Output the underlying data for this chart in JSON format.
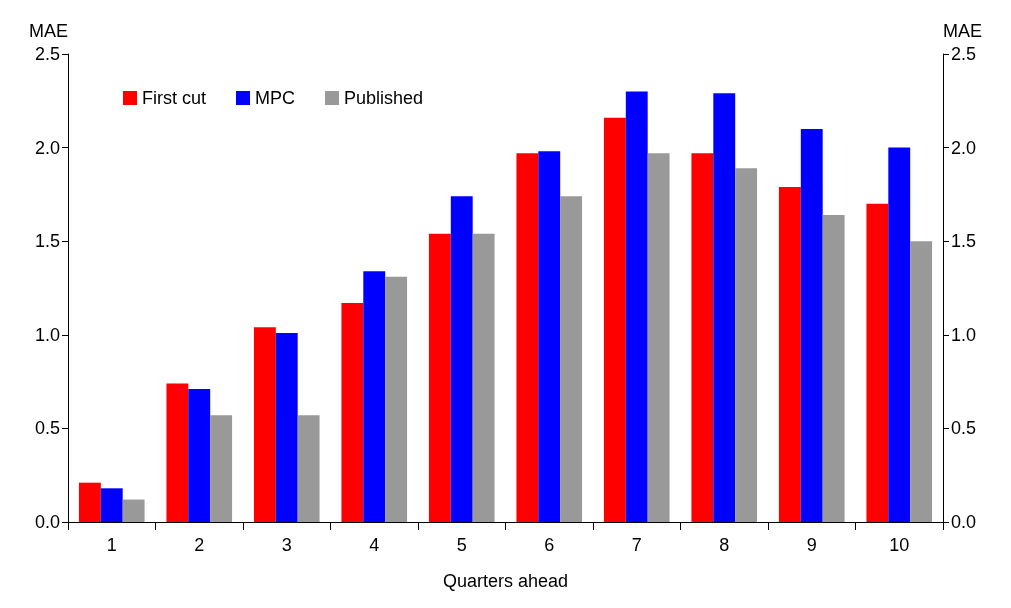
{
  "chart_data": {
    "type": "bar",
    "ylabel": "MAE",
    "y2label": "MAE",
    "xlabel": "Quarters ahead",
    "categories": [
      "1",
      "2",
      "3",
      "4",
      "5",
      "6",
      "7",
      "8",
      "9",
      "10"
    ],
    "series": [
      {
        "name": "First cut",
        "color": "#ff0000",
        "values": [
          0.21,
          0.74,
          1.04,
          1.17,
          1.54,
          1.97,
          2.16,
          1.97,
          1.79,
          1.7
        ]
      },
      {
        "name": "MPC",
        "color": "#0000ff",
        "values": [
          0.18,
          0.71,
          1.01,
          1.34,
          1.74,
          1.98,
          2.3,
          2.29,
          2.1,
          2.0
        ]
      },
      {
        "name": "Published",
        "color": "#999999",
        "values": [
          0.12,
          0.57,
          0.57,
          1.31,
          1.54,
          1.74,
          1.97,
          1.89,
          1.64,
          1.5
        ]
      }
    ],
    "ylim": [
      0,
      2.5
    ],
    "yticks": [
      {
        "value": 0,
        "label": "0.0"
      },
      {
        "value": 0.5,
        "label": "0.5"
      },
      {
        "value": 1,
        "label": "1.0"
      },
      {
        "value": 1.5,
        "label": "1.5"
      },
      {
        "value": 2,
        "label": "2.0"
      },
      {
        "value": 2.5,
        "label": "2.5"
      }
    ],
    "y2lim": [
      0,
      2.5
    ],
    "y2ticks": [
      {
        "value": 0,
        "label": "0.0"
      },
      {
        "value": 0.5,
        "label": "0.5"
      },
      {
        "value": 1,
        "label": "1.0"
      },
      {
        "value": 1.5,
        "label": "1.5"
      },
      {
        "value": 2,
        "label": "2.0"
      },
      {
        "value": 2.5,
        "label": "2.5"
      }
    ],
    "grid": false,
    "legend": "top left"
  }
}
